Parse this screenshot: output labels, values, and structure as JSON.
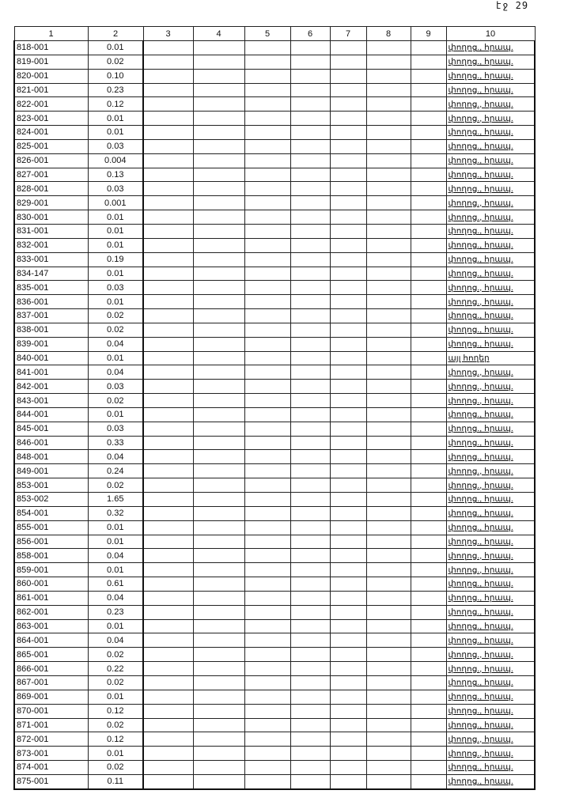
{
  "page_number": "էջ 29",
  "headers": [
    "1",
    "2",
    "3",
    "4",
    "5",
    "6",
    "7",
    "8",
    "9",
    "10"
  ],
  "rows": [
    [
      "818-001",
      "0.01",
      "փողոց., հրապ."
    ],
    [
      "819-001",
      "0.02",
      "փողոց., հրապ."
    ],
    [
      "820-001",
      "0.10",
      "փողոց., հրապ."
    ],
    [
      "821-001",
      "0.23",
      "փողոց., հրապ."
    ],
    [
      "822-001",
      "0.12",
      "փողոց., հրապ."
    ],
    [
      "823-001",
      "0.01",
      "փողոց., հրապ."
    ],
    [
      "824-001",
      "0.01",
      "փողոց., հրապ."
    ],
    [
      "825-001",
      "0.03",
      "փողոց., հրապ."
    ],
    [
      "826-001",
      "0.004",
      "փողոց., հրապ."
    ],
    [
      "827-001",
      "0.13",
      "փողոց., հրապ."
    ],
    [
      "828-001",
      "0.03",
      "փողոց., հրապ."
    ],
    [
      "829-001",
      "0.001",
      "փողոց., հրապ."
    ],
    [
      "830-001",
      "0.01",
      "փողոց., հրապ."
    ],
    [
      "831-001",
      "0.01",
      "փողոց., հրապ."
    ],
    [
      "832-001",
      "0.01",
      "փողոց., հրապ."
    ],
    [
      "833-001",
      "0.19",
      "փողոց., հրապ."
    ],
    [
      "834-147",
      "0.01",
      "փողոց., հրապ."
    ],
    [
      "835-001",
      "0.03",
      "փողոց., հրապ."
    ],
    [
      "836-001",
      "0.01",
      "փողոց., հրապ."
    ],
    [
      "837-001",
      "0.02",
      "փողոց., հրապ."
    ],
    [
      "838-001",
      "0.02",
      "փողոց., հրապ."
    ],
    [
      "839-001",
      "0.04",
      "փողոց., հրապ."
    ],
    [
      "840-001",
      "0.01",
      "այլ հողեր"
    ],
    [
      "841-001",
      "0.04",
      "փողոց., հրապ."
    ],
    [
      "842-001",
      "0.03",
      "փողոց., հրապ."
    ],
    [
      "843-001",
      "0.02",
      "փողոց., հրապ."
    ],
    [
      "844-001",
      "0.01",
      "փողոց., հրապ."
    ],
    [
      "845-001",
      "0.03",
      "փողոց., հրապ."
    ],
    [
      "846-001",
      "0.33",
      "փողոց., հրապ."
    ],
    [
      "848-001",
      "0.04",
      "փողոց., հրապ."
    ],
    [
      "849-001",
      "0.24",
      "փողոց., հրապ."
    ],
    [
      "853-001",
      "0.02",
      "փողոց., հրապ."
    ],
    [
      "853-002",
      "1.65",
      "փողոց., հրապ."
    ],
    [
      "854-001",
      "0.32",
      "փողոց., հրապ."
    ],
    [
      "855-001",
      "0.01",
      "փողոց., հրապ."
    ],
    [
      "856-001",
      "0.01",
      "փողոց., հրապ."
    ],
    [
      "858-001",
      "0.04",
      "փողոց., հրապ."
    ],
    [
      "859-001",
      "0.01",
      "փողոց., հրապ."
    ],
    [
      "860-001",
      "0.61",
      "փողոց., հրապ."
    ],
    [
      "861-001",
      "0.04",
      "փողոց., հրապ."
    ],
    [
      "862-001",
      "0.23",
      "փողոց., հրապ."
    ],
    [
      "863-001",
      "0.01",
      "փողոց., հրապ."
    ],
    [
      "864-001",
      "0.04",
      "փողոց., հրապ."
    ],
    [
      "865-001",
      "0.02",
      "փողոց., հրապ."
    ],
    [
      "866-001",
      "0.22",
      "փողոց., հրապ."
    ],
    [
      "867-001",
      "0.02",
      "փողոց., հրապ."
    ],
    [
      "869-001",
      "0.01",
      "փողոց., հրապ."
    ],
    [
      "870-001",
      "0.12",
      "փողոց., հրապ."
    ],
    [
      "871-001",
      "0.02",
      "փողոց., հրապ."
    ],
    [
      "872-001",
      "0.12",
      "փողոց., հրապ."
    ],
    [
      "873-001",
      "0.01",
      "փողոց., հրապ."
    ],
    [
      "874-001",
      "0.02",
      "փողոց., հրապ."
    ],
    [
      "875-001",
      "0.11",
      "փողոց., հրապ."
    ]
  ]
}
